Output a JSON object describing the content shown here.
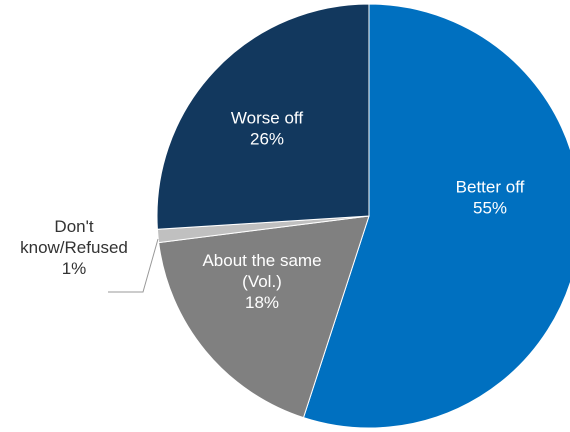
{
  "chart_data": {
    "type": "pie",
    "title": "",
    "slices": [
      {
        "label": "Better off",
        "value": 55,
        "value_label": "55%",
        "color": "#0070c0"
      },
      {
        "label": "About the same (Vol.)",
        "value": 18,
        "value_label": "18%",
        "color": "#808080"
      },
      {
        "label": "Don't know/Refused",
        "value": 1,
        "value_label": "1%",
        "color": "#c0c0c0"
      },
      {
        "label": "Worse off",
        "value": 26,
        "value_label": "26%",
        "color": "#12385e"
      }
    ],
    "label_lines": [
      [
        "Better off",
        "55%"
      ],
      [
        "About the same",
        "(Vol.)",
        "18%"
      ],
      [
        "Don't",
        "know/Refused",
        "1%"
      ],
      [
        "Worse off",
        "26%"
      ]
    ]
  }
}
